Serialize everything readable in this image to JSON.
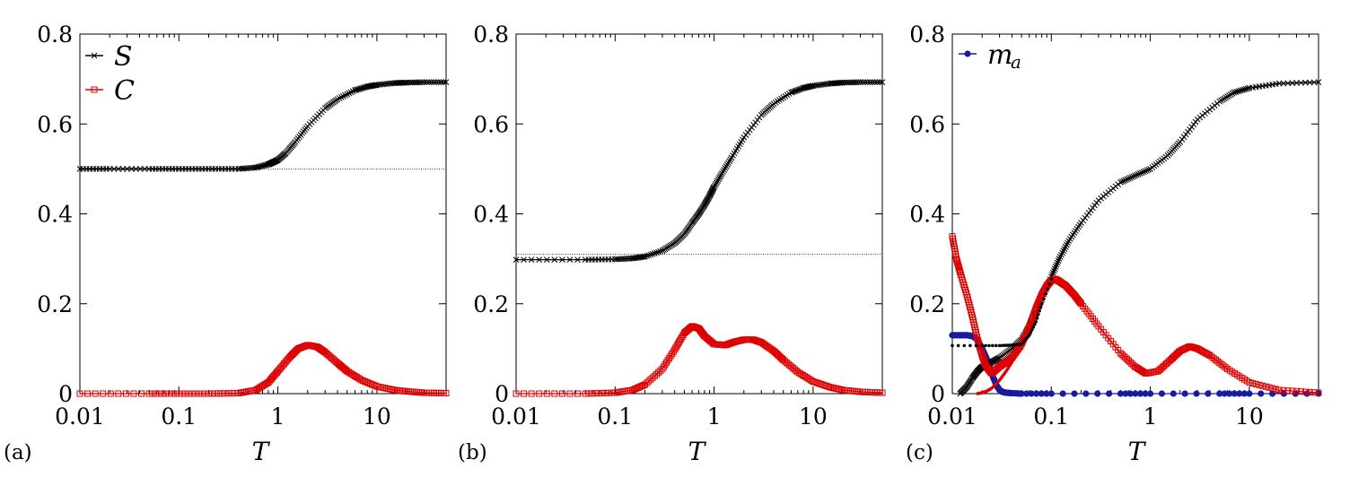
{
  "chart_data": [
    {
      "type": "line",
      "panel_label": "(a)",
      "xlabel": "T",
      "xscale": "log",
      "xlim": [
        0.01,
        50
      ],
      "ylim": [
        0,
        0.8
      ],
      "xticks": [
        "0.01",
        "0.1",
        "1",
        "10"
      ],
      "xtick_values": [
        0.01,
        0.1,
        1,
        10
      ],
      "yticks": [
        "0",
        "0.2",
        "0.4",
        "0.6",
        "0.8"
      ],
      "ytick_values": [
        0,
        0.2,
        0.4,
        0.6,
        0.8
      ],
      "legend_position": "top-left",
      "legend": [
        {
          "name": "S",
          "marker": "x",
          "color": "#000000"
        },
        {
          "name": "C",
          "marker": "open-square",
          "color": "#dd0000"
        }
      ],
      "series": [
        {
          "name": "S",
          "color": "#000000",
          "marker": "x",
          "x": [
            0.01,
            0.02,
            0.05,
            0.1,
            0.2,
            0.4,
            0.6,
            0.8,
            0.9,
            1.0,
            1.2,
            1.5,
            2,
            3,
            4,
            6,
            8,
            10,
            15,
            20,
            30,
            50
          ],
          "y": [
            0.5,
            0.5,
            0.5,
            0.5,
            0.5,
            0.5,
            0.503,
            0.51,
            0.515,
            0.52,
            0.535,
            0.56,
            0.595,
            0.635,
            0.655,
            0.675,
            0.683,
            0.687,
            0.691,
            0.692,
            0.693,
            0.693
          ]
        },
        {
          "name": "C",
          "color": "#dd0000",
          "marker": "open-square",
          "x": [
            0.01,
            0.05,
            0.1,
            0.2,
            0.4,
            0.6,
            0.8,
            1.0,
            1.3,
            1.6,
            2.0,
            2.5,
            3,
            4,
            5,
            7,
            10,
            15,
            20,
            30,
            50
          ],
          "y": [
            0,
            0,
            0,
            0,
            0.001,
            0.008,
            0.025,
            0.05,
            0.08,
            0.1,
            0.108,
            0.104,
            0.092,
            0.068,
            0.05,
            0.03,
            0.016,
            0.008,
            0.005,
            0.002,
            0.001
          ]
        },
        {
          "name": "",
          "color": "#000000",
          "style": "dotted",
          "x": [
            0.01,
            50
          ],
          "y": [
            0.5,
            0.5
          ]
        }
      ]
    },
    {
      "type": "line",
      "panel_label": "(b)",
      "xlabel": "T",
      "xscale": "log",
      "xlim": [
        0.01,
        50
      ],
      "ylim": [
        0,
        0.8
      ],
      "xticks": [
        "0.01",
        "0.1",
        "1",
        "10"
      ],
      "xtick_values": [
        0.01,
        0.1,
        1,
        10
      ],
      "yticks": [
        "0",
        "0.2",
        "0.4",
        "0.6",
        "0.8"
      ],
      "ytick_values": [
        0,
        0.2,
        0.4,
        0.6,
        0.8
      ],
      "series": [
        {
          "name": "",
          "color": "#000000",
          "marker": "x",
          "x": [
            0.01,
            0.05,
            0.1,
            0.15,
            0.2,
            0.3,
            0.4,
            0.5,
            0.6,
            0.7,
            0.8,
            0.9,
            1.0,
            1.2,
            1.5,
            2,
            3,
            4,
            6,
            8,
            10,
            15,
            20,
            30,
            50
          ],
          "y": [
            0.298,
            0.298,
            0.299,
            0.301,
            0.305,
            0.318,
            0.335,
            0.355,
            0.38,
            0.4,
            0.42,
            0.44,
            0.46,
            0.49,
            0.525,
            0.57,
            0.62,
            0.645,
            0.67,
            0.68,
            0.685,
            0.69,
            0.692,
            0.693,
            0.693
          ]
        },
        {
          "name": "",
          "color": "#dd0000",
          "marker": "open-square",
          "x": [
            0.01,
            0.05,
            0.1,
            0.15,
            0.2,
            0.3,
            0.4,
            0.5,
            0.6,
            0.7,
            0.8,
            1.0,
            1.3,
            1.6,
            2.0,
            2.5,
            3,
            4,
            5,
            7,
            10,
            15,
            20,
            30,
            50
          ],
          "y": [
            0,
            0,
            0.002,
            0.008,
            0.02,
            0.055,
            0.098,
            0.135,
            0.15,
            0.145,
            0.128,
            0.11,
            0.108,
            0.115,
            0.12,
            0.12,
            0.114,
            0.095,
            0.075,
            0.048,
            0.027,
            0.014,
            0.008,
            0.004,
            0.002
          ]
        },
        {
          "name": "",
          "color": "#000000",
          "style": "dotted",
          "x": [
            0.01,
            50
          ],
          "y": [
            0.31,
            0.31
          ]
        }
      ]
    },
    {
      "type": "line",
      "panel_label": "(c)",
      "xlabel": "T",
      "xscale": "log",
      "xlim": [
        0.01,
        50
      ],
      "ylim": [
        0,
        0.8
      ],
      "xticks": [
        "0.01",
        "0.1",
        "1",
        "10"
      ],
      "xtick_values": [
        0.01,
        0.1,
        1,
        10
      ],
      "yticks": [
        "0",
        "0.2",
        "0.4",
        "0.6",
        "0.8"
      ],
      "ytick_values": [
        0,
        0.2,
        0.4,
        0.6,
        0.8
      ],
      "legend_position": "top-left",
      "legend": [
        {
          "name": "m",
          "subscript": "a",
          "marker": "filled-circle",
          "color": "#1a1aa0"
        }
      ],
      "series": [
        {
          "name": "m_a",
          "color": "#1a1aa0",
          "marker": "filled-circle",
          "x": [
            0.01,
            0.012,
            0.014,
            0.016,
            0.018,
            0.02,
            0.022,
            0.024,
            0.026,
            0.028,
            0.03,
            0.032,
            0.035,
            0.04,
            0.05,
            0.1,
            0.5,
            1,
            5,
            10,
            50
          ],
          "y": [
            0.13,
            0.13,
            0.13,
            0.128,
            0.12,
            0.1,
            0.08,
            0.058,
            0.035,
            0.018,
            0.008,
            0.004,
            0.002,
            0.001,
            0,
            0,
            0,
            0,
            0,
            0,
            0
          ]
        },
        {
          "name": "S",
          "color": "#000000",
          "marker": "x",
          "x": [
            0.012,
            0.014,
            0.016,
            0.018,
            0.02,
            0.025,
            0.03,
            0.04,
            0.05,
            0.06,
            0.07,
            0.08,
            0.1,
            0.12,
            0.15,
            0.2,
            0.3,
            0.5,
            0.7,
            1.0,
            1.5,
            2,
            3,
            5,
            7,
            10,
            20,
            50
          ],
          "y": [
            0,
            0.015,
            0.035,
            0.05,
            0.06,
            0.07,
            0.08,
            0.1,
            0.12,
            0.15,
            0.18,
            0.21,
            0.26,
            0.3,
            0.34,
            0.38,
            0.43,
            0.47,
            0.485,
            0.5,
            0.53,
            0.56,
            0.61,
            0.65,
            0.67,
            0.68,
            0.69,
            0.693
          ]
        },
        {
          "name": "C",
          "color": "#dd0000",
          "marker": "open-square",
          "x": [
            0.01,
            0.011,
            0.012,
            0.014,
            0.016,
            0.018,
            0.02,
            0.022,
            0.025,
            0.03,
            0.035,
            0.04,
            0.05,
            0.06,
            0.07,
            0.08,
            0.09,
            0.1,
            0.11,
            0.12,
            0.14,
            0.17,
            0.2,
            0.3,
            0.5,
            0.7,
            0.9,
            1.2,
            1.6,
            2.0,
            2.5,
            3,
            4,
            6,
            10,
            20,
            50
          ],
          "y": [
            0.35,
            0.3,
            0.27,
            0.22,
            0.17,
            0.12,
            0.085,
            0.06,
            0.045,
            0.06,
            0.07,
            0.08,
            0.11,
            0.15,
            0.19,
            0.22,
            0.24,
            0.252,
            0.255,
            0.25,
            0.24,
            0.22,
            0.2,
            0.15,
            0.09,
            0.06,
            0.045,
            0.05,
            0.075,
            0.095,
            0.105,
            0.1,
            0.085,
            0.055,
            0.025,
            0.008,
            0.002
          ]
        },
        {
          "name": "",
          "color": "#dd0000",
          "style": "dotted-thick",
          "x": [
            0.018,
            0.02,
            0.022,
            0.025,
            0.03,
            0.035,
            0.04,
            0.05,
            0.06,
            0.07,
            0.08,
            0.09,
            0.1,
            0.11
          ],
          "y": [
            0,
            0.002,
            0.005,
            0.012,
            0.03,
            0.05,
            0.07,
            0.1,
            0.14,
            0.18,
            0.21,
            0.235,
            0.248,
            0.252
          ]
        },
        {
          "name": "",
          "color": "#000000",
          "style": "dotted-thick",
          "x": [
            0.01,
            0.02,
            0.03,
            0.04,
            0.05,
            0.06,
            0.07,
            0.08,
            0.1
          ],
          "y": [
            0.107,
            0.107,
            0.107,
            0.108,
            0.11,
            0.13,
            0.16,
            0.2,
            0.255
          ]
        }
      ]
    }
  ]
}
